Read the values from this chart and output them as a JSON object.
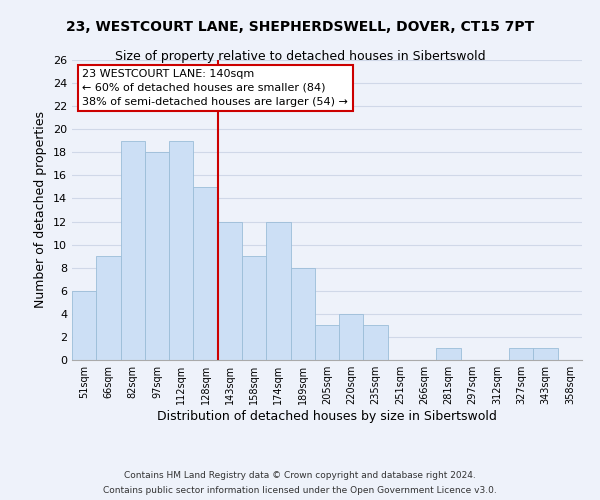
{
  "title": "23, WESTCOURT LANE, SHEPHERDSWELL, DOVER, CT15 7PT",
  "subtitle": "Size of property relative to detached houses in Sibertswold",
  "xlabel": "Distribution of detached houses by size in Sibertswold",
  "ylabel": "Number of detached properties",
  "bar_labels": [
    "51sqm",
    "66sqm",
    "82sqm",
    "97sqm",
    "112sqm",
    "128sqm",
    "143sqm",
    "158sqm",
    "174sqm",
    "189sqm",
    "205sqm",
    "220sqm",
    "235sqm",
    "251sqm",
    "266sqm",
    "281sqm",
    "297sqm",
    "312sqm",
    "327sqm",
    "343sqm",
    "358sqm"
  ],
  "bar_values": [
    6,
    9,
    19,
    18,
    19,
    15,
    12,
    9,
    12,
    8,
    3,
    4,
    3,
    0,
    0,
    1,
    0,
    0,
    1,
    1,
    0
  ],
  "bar_color": "#ccdff5",
  "bar_edge_color": "#9bbdd8",
  "vline_color": "#cc0000",
  "vline_pos": 5.5,
  "ylim": [
    0,
    26
  ],
  "yticks": [
    0,
    2,
    4,
    6,
    8,
    10,
    12,
    14,
    16,
    18,
    20,
    22,
    24,
    26
  ],
  "annotation_title": "23 WESTCOURT LANE: 140sqm",
  "annotation_line1": "← 60% of detached houses are smaller (84)",
  "annotation_line2": "38% of semi-detached houses are larger (54) →",
  "footer_line1": "Contains HM Land Registry data © Crown copyright and database right 2024.",
  "footer_line2": "Contains public sector information licensed under the Open Government Licence v3.0.",
  "background_color": "#eef2fa",
  "grid_color": "#d0d8e8",
  "title_fontsize": 10,
  "subtitle_fontsize": 9,
  "annotation_box_color": "#ffffff",
  "annotation_box_edge": "#cc0000"
}
